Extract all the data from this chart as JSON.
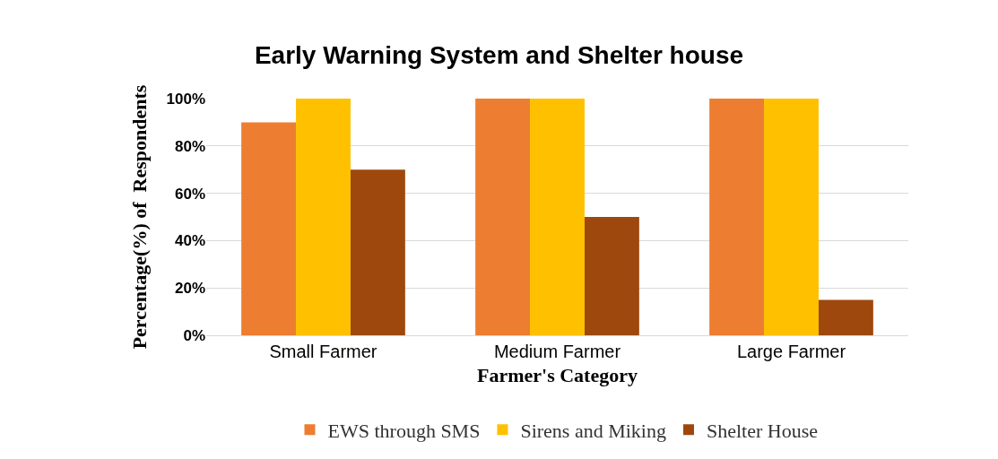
{
  "chart_data": {
    "type": "bar",
    "title": "Early Warning System and Shelter house",
    "xlabel": "Farmer's Category",
    "ylabel": "Percentage(%) of  Respondents",
    "categories": [
      "Small Farmer",
      "Medium Farmer",
      "Large Farmer"
    ],
    "series": [
      {
        "name": "EWS through SMS",
        "color": "#ed7d31",
        "values": [
          90,
          100,
          100
        ]
      },
      {
        "name": "Sirens and Miking",
        "color": "#ffc000",
        "values": [
          100,
          100,
          100
        ]
      },
      {
        "name": "Shelter House",
        "color": "#9e480e",
        "values": [
          70,
          50,
          15
        ]
      }
    ],
    "ylim": [
      0,
      100
    ],
    "yticks": [
      {
        "value": 0,
        "label": "0%"
      },
      {
        "value": 20,
        "label": "20%"
      },
      {
        "value": 40,
        "label": "40%"
      },
      {
        "value": 60,
        "label": "60%"
      },
      {
        "value": 80,
        "label": "80%"
      },
      {
        "value": 100,
        "label": "100%"
      }
    ],
    "grid": "y",
    "legend": "bottom"
  }
}
